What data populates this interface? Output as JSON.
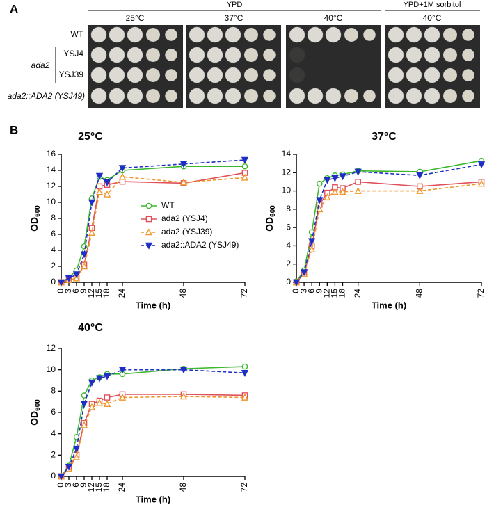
{
  "panel_a": {
    "label": "A",
    "header_ypd": "YPD",
    "header_sorbitol": "YPD+1M sorbitol",
    "temperatures": [
      "25°C",
      "37°C",
      "40°C",
      "40°C"
    ],
    "strains": [
      "WT",
      "YSJ4",
      "YSJ39",
      "ada2::ADA2 (YSJ49)"
    ],
    "group_label": "ada2"
  },
  "panel_b": {
    "label": "B"
  },
  "chart_data": [
    {
      "type": "line",
      "title": "25°C",
      "xlabel": "Time (h)",
      "ylabel": "OD",
      "ylabel_sub": "600",
      "x": [
        0,
        3,
        6,
        9,
        12,
        15,
        18,
        24,
        48,
        72
      ],
      "xlim": [
        0,
        72
      ],
      "xticks": [
        0,
        3,
        6,
        9,
        12,
        15,
        18,
        24,
        48,
        72
      ],
      "ylim": [
        0,
        16
      ],
      "yticks": [
        0,
        2,
        4,
        6,
        8,
        10,
        12,
        14,
        16
      ],
      "legend": "center right",
      "series": [
        {
          "name": "WT",
          "color": "#3cb82e",
          "marker": "circle",
          "dash": false,
          "values": [
            0,
            0.6,
            1.5,
            4.5,
            10.5,
            13.2,
            12.8,
            14.0,
            14.5,
            14.5
          ]
        },
        {
          "name": "ada2 (YSJ4)",
          "color": "#e0505a",
          "marker": "square",
          "dash": false,
          "values": [
            0,
            0.3,
            0.5,
            2.2,
            6.8,
            12.0,
            12.2,
            12.6,
            12.4,
            13.7
          ]
        },
        {
          "name": "ada2 (YSJ39)",
          "color": "#f0962a",
          "marker": "triangle-up",
          "dash": true,
          "values": [
            0,
            0.3,
            0.5,
            2.0,
            6.2,
            11.3,
            11.0,
            13.2,
            12.5,
            13.1
          ]
        },
        {
          "name": "ada2::ADA2 (YSJ49)",
          "color": "#1f2fc4",
          "marker": "triangle-down",
          "dash": true,
          "values": [
            0,
            0.5,
            1.0,
            3.5,
            10.0,
            13.3,
            12.5,
            14.3,
            14.8,
            15.3
          ]
        }
      ]
    },
    {
      "type": "line",
      "title": "37°C",
      "xlabel": "Time (h)",
      "ylabel": "OD",
      "ylabel_sub": "600",
      "x": [
        0,
        3,
        6,
        9,
        12,
        15,
        18,
        24,
        48,
        72
      ],
      "xlim": [
        0,
        72
      ],
      "xticks": [
        0,
        3,
        6,
        9,
        12,
        15,
        18,
        24,
        48,
        72
      ],
      "ylim": [
        0,
        14
      ],
      "yticks": [
        0,
        2,
        4,
        6,
        8,
        10,
        12,
        14
      ],
      "series": [
        {
          "color": "#3cb82e",
          "marker": "circle",
          "dash": false,
          "values": [
            0.1,
            1.3,
            5.5,
            10.8,
            11.4,
            11.7,
            11.8,
            12.2,
            12.1,
            13.3
          ]
        },
        {
          "color": "#e0505a",
          "marker": "square",
          "dash": false,
          "values": [
            0,
            1.0,
            4.0,
            8.5,
            9.8,
            10.4,
            10.3,
            11.0,
            10.5,
            11.0
          ]
        },
        {
          "color": "#f0962a",
          "marker": "triangle-up",
          "dash": true,
          "values": [
            0,
            0.9,
            3.6,
            8.0,
            9.3,
            9.9,
            9.9,
            10.0,
            10.0,
            10.8
          ]
        },
        {
          "color": "#1f2fc4",
          "marker": "triangle-down",
          "dash": true,
          "values": [
            0,
            1.1,
            4.5,
            9.0,
            11.2,
            11.4,
            11.6,
            12.1,
            11.7,
            12.9
          ]
        }
      ]
    },
    {
      "type": "line",
      "title": "40°C",
      "xlabel": "Time (h)",
      "ylabel": "OD",
      "ylabel_sub": "600",
      "x": [
        0,
        3,
        6,
        9,
        12,
        15,
        18,
        24,
        48,
        72
      ],
      "xlim": [
        0,
        72
      ],
      "xticks": [
        0,
        3,
        6,
        9,
        12,
        15,
        18,
        24,
        48,
        72
      ],
      "ylim": [
        0,
        12
      ],
      "yticks": [
        0,
        2,
        4,
        6,
        8,
        10,
        12
      ],
      "series": [
        {
          "color": "#3cb82e",
          "marker": "circle",
          "dash": false,
          "values": [
            0,
            1.0,
            3.7,
            7.6,
            9.0,
            9.3,
            9.6,
            9.6,
            10.1,
            10.3
          ]
        },
        {
          "color": "#e0505a",
          "marker": "square",
          "dash": false,
          "values": [
            0,
            0.8,
            2.0,
            5.0,
            6.8,
            7.1,
            7.4,
            7.7,
            7.7,
            7.6
          ]
        },
        {
          "color": "#f0962a",
          "marker": "triangle-up",
          "dash": true,
          "values": [
            0,
            0.7,
            1.8,
            4.8,
            6.5,
            6.9,
            6.8,
            7.4,
            7.5,
            7.4
          ]
        },
        {
          "color": "#1f2fc4",
          "marker": "triangle-down",
          "dash": true,
          "values": [
            0,
            0.9,
            2.6,
            6.8,
            8.8,
            9.2,
            9.4,
            10.0,
            10.0,
            9.7
          ]
        }
      ]
    }
  ]
}
